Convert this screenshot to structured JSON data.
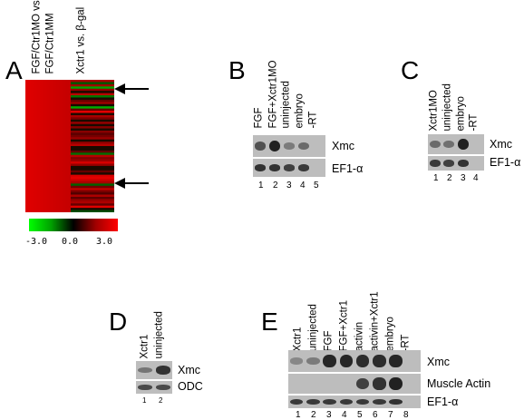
{
  "panels": {
    "A": {
      "letter": "A",
      "col_labels": [
        "FGF/Ctr1MO vs.",
        "FGF/Ctr1MM",
        "Xctr1 vs. β-gal"
      ],
      "scale": {
        "min": "-3.0",
        "mid": "0.0",
        "max": "3.0",
        "colors": [
          "#00ff00",
          "#000000",
          "#ff0000"
        ]
      },
      "arrows": 2
    },
    "B": {
      "letter": "B",
      "lanes": [
        "FGF",
        "FGF+Xctr1MO",
        "uninjected",
        "embryo",
        "-RT"
      ],
      "rows": [
        "Xmc",
        "EF1-α"
      ],
      "numbers": [
        "1",
        "2",
        "3",
        "4",
        "5"
      ],
      "xmc_intensity": [
        0.55,
        0.95,
        0.2,
        0.35,
        0
      ],
      "ef1_intensity": [
        0.8,
        0.8,
        0.7,
        0.75,
        0
      ]
    },
    "C": {
      "letter": "C",
      "lanes": [
        "Xctr1MO",
        "uninjected",
        "embryo",
        "-RT"
      ],
      "rows": [
        "Xmc",
        "EF1-α"
      ],
      "numbers": [
        "1",
        "2",
        "3",
        "4"
      ],
      "xmc_intensity": [
        0.35,
        0.3,
        0.95,
        0
      ],
      "ef1_intensity": [
        0.75,
        0.7,
        0.8,
        0
      ]
    },
    "D": {
      "letter": "D",
      "lanes": [
        "Xctr1",
        "uninjected"
      ],
      "rows": [
        "Xmc",
        "ODC"
      ],
      "numbers": [
        "1",
        "2"
      ],
      "xmc_intensity": [
        0.25,
        0.8
      ],
      "odc_intensity": [
        0.6,
        0.6
      ]
    },
    "E": {
      "letter": "E",
      "lanes": [
        "Xctr1",
        "uninjected",
        "FGF",
        "FGF+Xctr1",
        "activin",
        "activin+Xctr1",
        "embryo",
        "-RT"
      ],
      "rows": [
        "Xmc",
        "Muscle Actin",
        "EF1-α"
      ],
      "numbers": [
        "1",
        "2",
        "3",
        "4",
        "5",
        "6",
        "7",
        "8"
      ],
      "xmc_intensity": [
        0.1,
        0.2,
        0.9,
        0.9,
        0.85,
        0.85,
        0.9,
        0
      ],
      "actin_intensity": [
        0,
        0,
        0,
        0,
        0.7,
        0.8,
        0.95,
        0
      ],
      "ef1_intensity": [
        0.75,
        0.75,
        0.75,
        0.75,
        0.75,
        0.75,
        0.8,
        0
      ]
    }
  }
}
